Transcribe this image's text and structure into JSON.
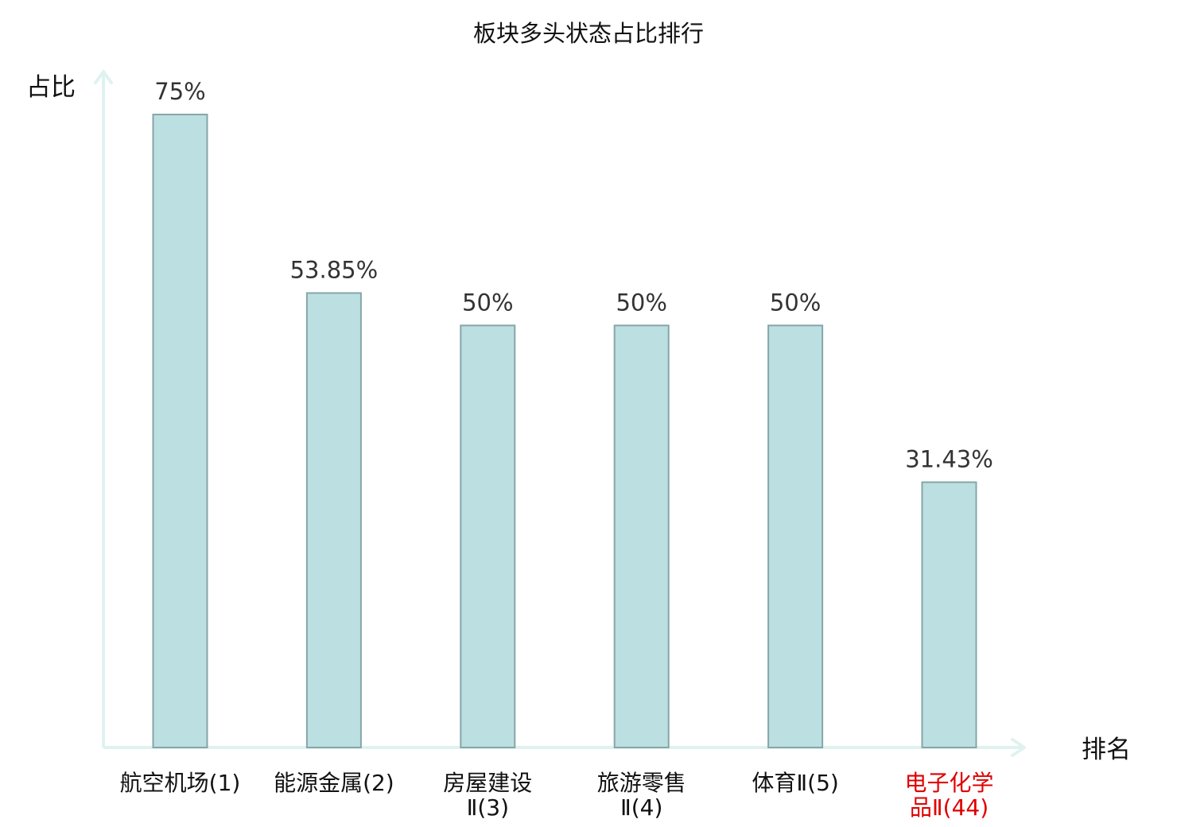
{
  "chart_data": {
    "type": "bar",
    "title": "板块多头状态占比排行",
    "xlabel": "排名",
    "ylabel": "占比",
    "categories": [
      [
        "航空机场(1)"
      ],
      [
        "能源金属(2)"
      ],
      [
        "房屋建设",
        "Ⅱ(3)"
      ],
      [
        "旅游零售",
        "Ⅱ(4)"
      ],
      [
        "体育Ⅱ(5)"
      ],
      [
        "电子化学",
        "品Ⅱ(44)"
      ]
    ],
    "values": [
      75,
      53.85,
      50,
      50,
      50,
      31.43
    ],
    "value_labels": [
      "75%",
      "53.85%",
      "50%",
      "50%",
      "50%",
      "31.43%"
    ],
    "highlighted_category_index": 5,
    "ylim": [
      0,
      75
    ],
    "grid": false,
    "legend": "none"
  },
  "colors": {
    "bar_fill": "#bce0e2",
    "bar_stroke": "#86a6a8",
    "axis": "#dff2ef",
    "text": "#111111",
    "value_text": "#333333",
    "highlight": "#e00000"
  }
}
